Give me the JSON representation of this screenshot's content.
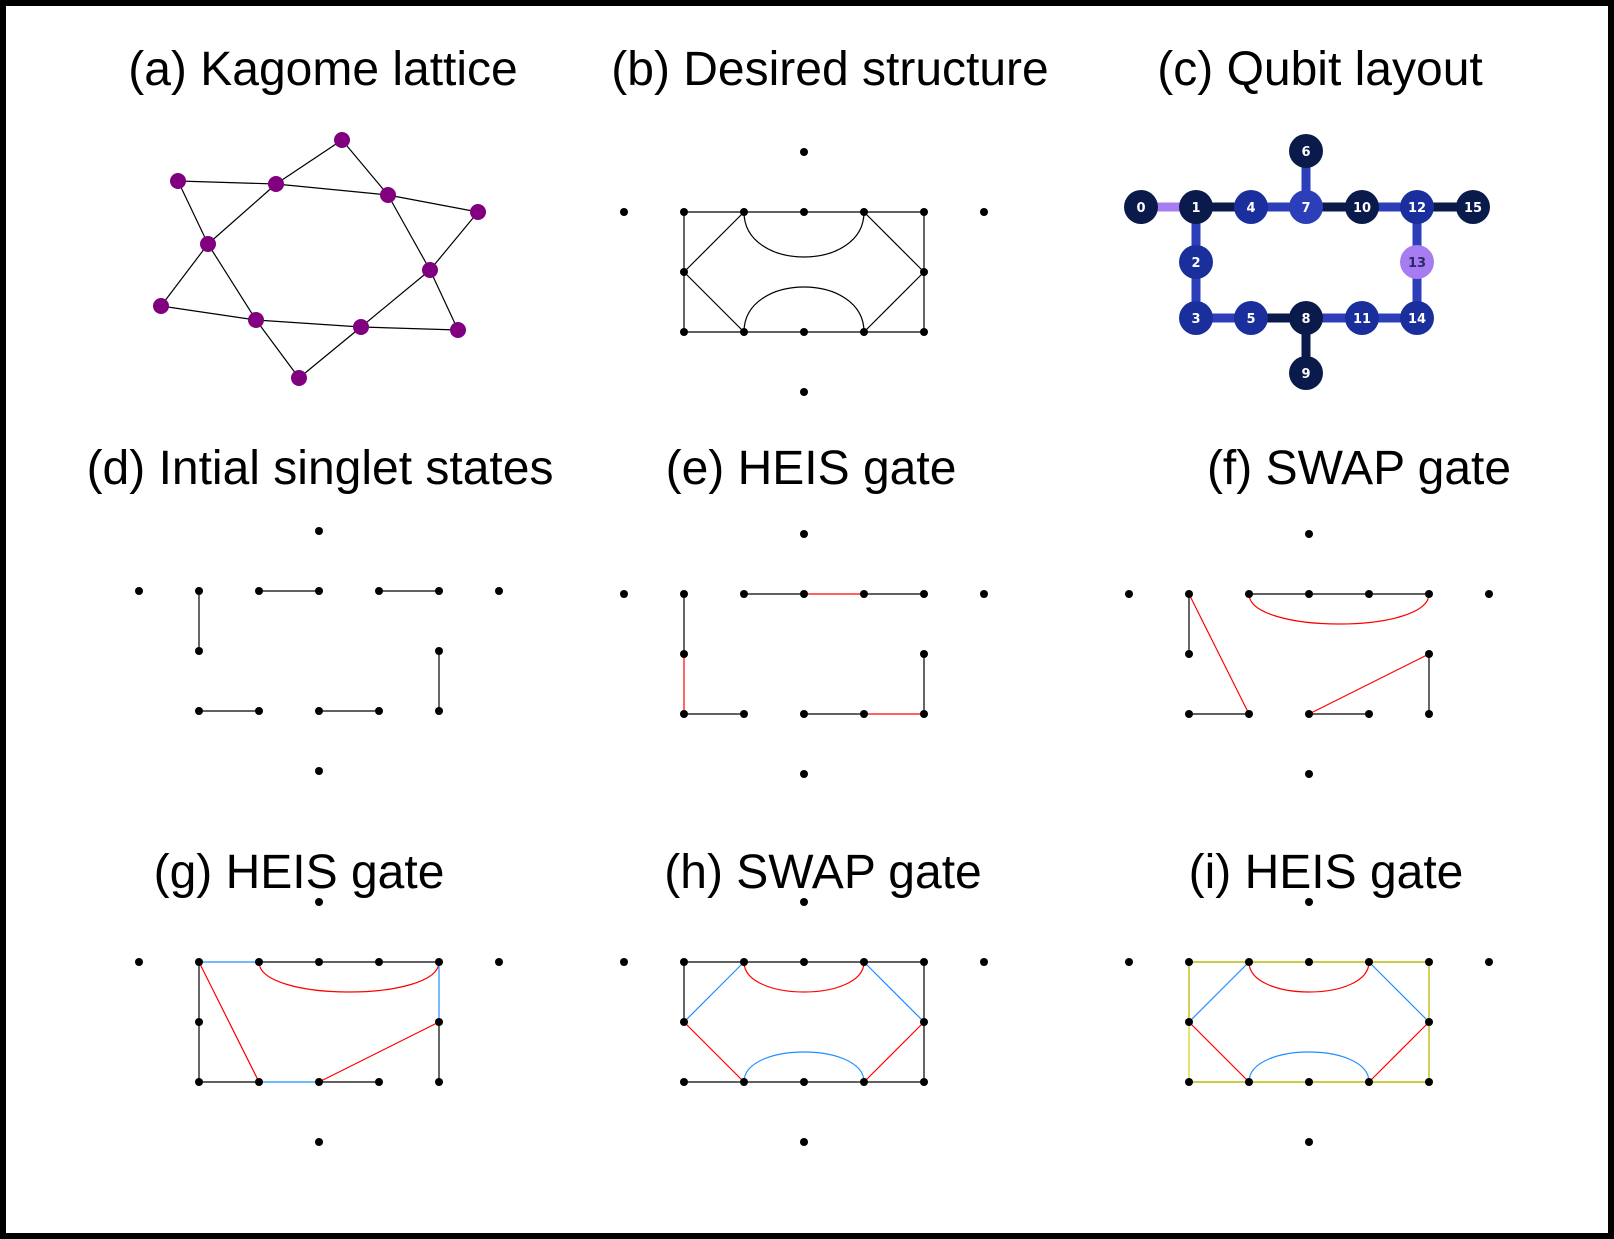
{
  "titles": {
    "a": "(a) Kagome lattice",
    "b": "(b) Desired structure",
    "c": "(c) Qubit layout",
    "d": "(d) Intial singlet states",
    "e": "(e) HEIS gate",
    "f": "(f) SWAP gate",
    "g": "(g) HEIS gate",
    "h": "(h) SWAP gate",
    "i": "(i) HEIS gate"
  },
  "colors": {
    "kagome_node": "#800080",
    "node": "#000000",
    "edge": "#000000",
    "red": "#ff0000",
    "blue": "#1e90ff",
    "yellow": "#d4d400",
    "qubit_dark": "#0a1a4a",
    "qubit_mid": "#1a2f9c",
    "qubit_mid2": "#2c3fb8",
    "qubit_light": "#a67cf0",
    "coupler_dark": "#0a1a4a",
    "coupler_mid": "#2c3fb8",
    "coupler_light": "#a67cf0"
  },
  "qubit_labels": [
    "0",
    "1",
    "2",
    "3",
    "4",
    "5",
    "6",
    "7",
    "8",
    "9",
    "10",
    "11",
    "12",
    "13",
    "14",
    "15"
  ],
  "qubit_shades": [
    "dark",
    "dark",
    "mid",
    "mid",
    "mid",
    "mid",
    "dark",
    "mid2",
    "dark",
    "dark",
    "dark",
    "mid",
    "mid",
    "light",
    "mid",
    "dark"
  ],
  "qubit_couplers": [
    {
      "a": 0,
      "b": 1,
      "shade": "light"
    },
    {
      "a": 1,
      "b": 4,
      "shade": "dark"
    },
    {
      "a": 4,
      "b": 7,
      "shade": "mid"
    },
    {
      "a": 7,
      "b": 10,
      "shade": "dark"
    },
    {
      "a": 10,
      "b": 12,
      "shade": "mid"
    },
    {
      "a": 12,
      "b": 15,
      "shade": "dark"
    },
    {
      "a": 6,
      "b": 7,
      "shade": "mid"
    },
    {
      "a": 1,
      "b": 2,
      "shade": "mid"
    },
    {
      "a": 2,
      "b": 3,
      "shade": "mid"
    },
    {
      "a": 3,
      "b": 5,
      "shade": "mid"
    },
    {
      "a": 5,
      "b": 8,
      "shade": "dark"
    },
    {
      "a": 8,
      "b": 11,
      "shade": "mid"
    },
    {
      "a": 11,
      "b": 14,
      "shade": "mid"
    },
    {
      "a": 12,
      "b": 13,
      "shade": "mid"
    },
    {
      "a": 13,
      "b": 14,
      "shade": "mid"
    },
    {
      "a": 8,
      "b": 9,
      "shade": "dark"
    }
  ]
}
